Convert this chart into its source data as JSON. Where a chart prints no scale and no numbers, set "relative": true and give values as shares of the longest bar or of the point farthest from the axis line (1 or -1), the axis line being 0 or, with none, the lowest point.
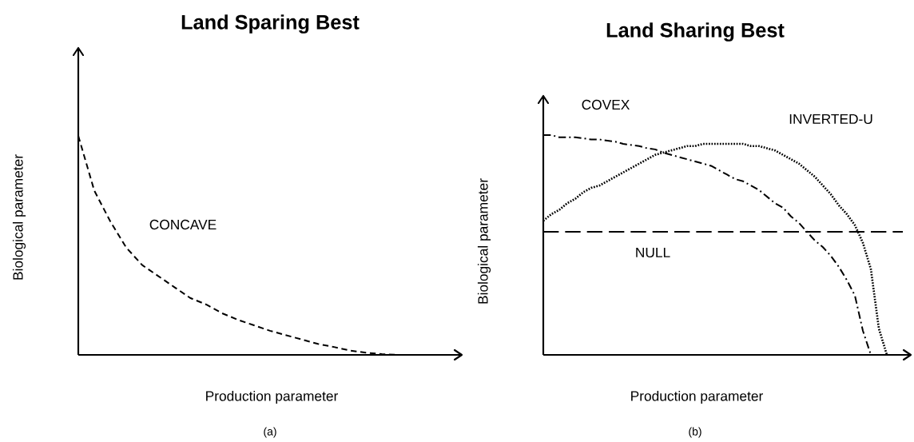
{
  "chart_data": [
    {
      "type": "line",
      "title": "Land Sparing Best",
      "xlabel": "Production parameter",
      "ylabel": "Biological parameter",
      "relative": true,
      "marker": "none",
      "annotations": [
        "(a)"
      ],
      "categories": [
        null,
        null,
        null,
        null,
        null,
        null,
        null,
        null,
        null,
        null,
        null,
        null,
        null,
        null,
        null,
        null,
        null,
        null,
        null,
        null,
        null,
        null,
        null,
        null,
        null
      ],
      "series": [
        {
          "name": "CONCAVE",
          "color": "#000000",
          "line_style": "dashed",
          "values": [
            1.0,
            0.75,
            0.61,
            0.49,
            0.41,
            0.36,
            0.31,
            0.26,
            0.23,
            0.19,
            0.16,
            0.135,
            0.11,
            0.09,
            0.07,
            0.05,
            0.036,
            0.02,
            0.01,
            0.004,
            0,
            null,
            null,
            null,
            null
          ]
        }
      ]
    },
    {
      "type": "line",
      "title": "Land Sharing Best",
      "xlabel": "Production parameter",
      "ylabel": "Biological parameter",
      "relative": true,
      "marker": "none",
      "annotations": [
        "(b)"
      ],
      "categories": [
        null,
        null,
        null,
        null,
        null,
        null,
        null,
        null,
        null,
        null,
        null,
        null,
        null,
        null,
        null,
        null,
        null,
        null,
        null,
        null,
        null,
        null,
        null,
        null,
        null,
        null,
        null,
        null,
        null,
        null,
        null,
        null,
        null,
        null,
        null,
        null,
        null,
        null,
        null,
        null,
        null,
        null,
        null,
        null,
        null,
        null,
        null
      ],
      "series": [
        {
          "name": "COVEX",
          "color": "#000000",
          "line_style": "dashdot",
          "values": [
            1.0,
            1.0,
            0.99,
            0.99,
            0.99,
            0.985,
            0.98,
            0.98,
            0.975,
            0.97,
            0.96,
            0.955,
            0.95,
            0.94,
            0.935,
            0.92,
            0.91,
            0.9,
            0.89,
            0.88,
            0.87,
            0.86,
            0.84,
            0.82,
            0.8,
            0.79,
            0.77,
            0.75,
            0.72,
            0.69,
            0.67,
            0.63,
            0.6,
            0.56,
            0.52,
            0.49,
            0.45,
            0.4,
            0.34,
            0.27,
            0.11,
            0,
            null,
            null,
            null,
            null,
            null
          ]
        },
        {
          "name": "INVERTED-U",
          "color": "#000000",
          "line_style": "dotted",
          "values": [
            0.61,
            0.64,
            0.66,
            0.69,
            0.71,
            0.74,
            0.76,
            0.77,
            0.79,
            0.81,
            0.83,
            0.85,
            0.87,
            0.89,
            0.91,
            0.92,
            0.93,
            0.94,
            0.95,
            0.95,
            0.96,
            0.96,
            0.96,
            0.96,
            0.96,
            0.96,
            0.95,
            0.95,
            0.94,
            0.93,
            0.91,
            0.89,
            0.87,
            0.84,
            0.81,
            0.77,
            0.73,
            0.68,
            0.64,
            0.59,
            0.51,
            0.39,
            0.12,
            0,
            null,
            null,
            null
          ]
        },
        {
          "name": "NULL",
          "color": "#000000",
          "line_style": "dashed",
          "values": [
            0.56,
            0.56,
            0.56,
            0.56,
            0.56,
            0.56,
            0.56,
            0.56,
            0.56,
            0.56,
            0.56,
            0.56,
            0.56,
            0.56,
            0.56,
            0.56,
            0.56,
            0.56,
            0.56,
            0.56,
            0.56,
            0.56,
            0.56,
            0.56,
            0.56,
            0.56,
            0.56,
            0.56,
            0.56,
            0.56,
            0.56,
            0.56,
            0.56,
            0.56,
            0.56,
            0.56,
            0.56,
            0.56,
            0.56,
            0.56,
            0.56,
            0.56,
            0.56,
            0.56,
            0.56,
            0.56,
            null
          ]
        }
      ]
    }
  ]
}
